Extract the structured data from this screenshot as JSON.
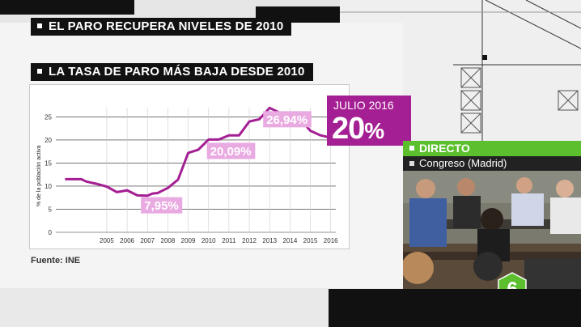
{
  "headline": "EL PARO RECUPERA NIVELES DE 2010",
  "subheadline": "LA TASA DE PARO MÁS BAJA DESDE 2010",
  "source": "Fuente: INE",
  "july": {
    "label": "JULIO 2016",
    "value": "20",
    "unit": "%"
  },
  "live": {
    "label": "DIRECTO",
    "location": "Congreso (Madrid)"
  },
  "logo_text": "6",
  "chart_data": {
    "type": "line",
    "ylabel": "% de la población activa",
    "ylim": [
      0,
      27
    ],
    "yticks": [
      0,
      5,
      10,
      15,
      20,
      25
    ],
    "xticks": [
      "2005",
      "2006",
      "2007",
      "2008",
      "2009",
      "2010",
      "2011",
      "2012",
      "2013",
      "2014",
      "2015",
      "2016"
    ],
    "series": [
      {
        "color": "#a41f93",
        "x": [
          2003.0,
          2003.75,
          2004.0,
          2004.5,
          2005.0,
          2005.5,
          2006.0,
          2006.5,
          2007.0,
          2007.25,
          2007.5,
          2008.0,
          2008.5,
          2009.0,
          2009.5,
          2010.0,
          2010.5,
          2011.0,
          2011.5,
          2012.0,
          2012.5,
          2013.0,
          2013.5,
          2014.0,
          2014.5,
          2015.0,
          2015.5,
          2016.0,
          2016.5
        ],
        "y": [
          11.5,
          11.5,
          11.0,
          10.5,
          9.9,
          8.7,
          9.1,
          8.0,
          7.95,
          8.4,
          8.5,
          9.6,
          11.4,
          17.2,
          17.9,
          20.09,
          20.1,
          21.0,
          21.0,
          24.0,
          24.5,
          26.94,
          25.9,
          25.9,
          24.5,
          22.0,
          21.0,
          20.5,
          20.0
        ]
      }
    ],
    "annotations": [
      {
        "text": "7,95%",
        "x": 2007.0,
        "y": 7.95
      },
      {
        "text": "20,09%",
        "x": 2010.0,
        "y": 20.09
      },
      {
        "text": "26,94%",
        "x": 2013.0,
        "y": 26.94
      }
    ]
  }
}
